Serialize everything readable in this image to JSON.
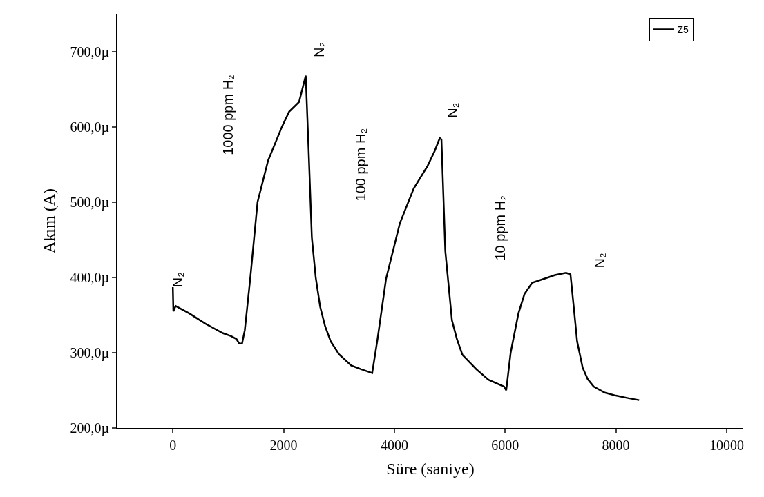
{
  "chart_data": {
    "type": "line",
    "xlabel": "Süre (saniye)",
    "ylabel": "Akım (A)",
    "xlim": [
      -1000,
      10300
    ],
    "ylim": [
      200,
      750
    ],
    "xticks": [
      0,
      2000,
      4000,
      6000,
      8000,
      10000
    ],
    "yticks": [
      {
        "value": 200,
        "label": "200,0µ"
      },
      {
        "value": 300,
        "label": "300,0µ"
      },
      {
        "value": 400,
        "label": "400,0µ"
      },
      {
        "value": 500,
        "label": "500,0µ"
      },
      {
        "value": 600,
        "label": "600,0µ"
      },
      {
        "value": 700,
        "label": "700,0µ"
      }
    ],
    "legend": "top right",
    "marker": "none",
    "line_style": "solid",
    "series": [
      {
        "name": "Z5",
        "color": "#000000",
        "x": [
          0,
          10,
          50,
          150,
          300,
          450,
          600,
          750,
          900,
          1050,
          1150,
          1200,
          1250,
          1300,
          1400,
          1530,
          1720,
          1970,
          2100,
          2280,
          2380,
          2400,
          2450,
          2510,
          2580,
          2660,
          2750,
          2850,
          3000,
          3220,
          3400,
          3600,
          3700,
          3850,
          4100,
          4350,
          4600,
          4730,
          4820,
          4850,
          4920,
          5040,
          5130,
          5230,
          5480,
          5700,
          5980,
          6020,
          6100,
          6240,
          6350,
          6490,
          6700,
          6900,
          7100,
          7180,
          7240,
          7300,
          7400,
          7490,
          7600,
          7800,
          8000,
          8200,
          8420
        ],
        "values": [
          387,
          355,
          362,
          358,
          352,
          345,
          338,
          332,
          326,
          322,
          318,
          312,
          312,
          330,
          400,
          500,
          555,
          600,
          620,
          633,
          662,
          668,
          573,
          453,
          400,
          361,
          335,
          315,
          298,
          283,
          278,
          273,
          320,
          398,
          472,
          518,
          548,
          568,
          585,
          583,
          435,
          343,
          318,
          297,
          278,
          264,
          255,
          250,
          300,
          352,
          378,
          393,
          398,
          403,
          406,
          404,
          360,
          315,
          280,
          265,
          255,
          247,
          243,
          240,
          237
        ]
      }
    ],
    "annotations": [
      "N₂",
      "1000 ppm H₂",
      "N₂",
      "100 ppm H₂",
      "N₂",
      "10 ppm H₂",
      "N₂"
    ]
  }
}
